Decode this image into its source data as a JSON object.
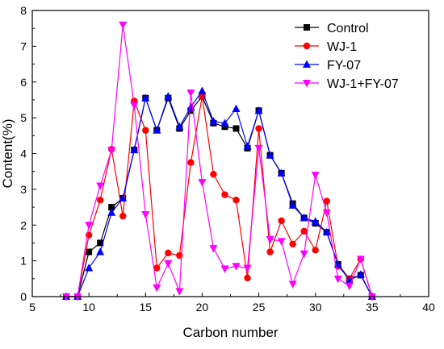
{
  "chart_data": {
    "type": "line",
    "xlabel": "Carbon number",
    "ylabel": "Content(%)",
    "xlim": [
      5,
      40
    ],
    "ylim": [
      0,
      8
    ],
    "xticks": [
      5,
      10,
      15,
      20,
      25,
      30,
      35,
      40
    ],
    "yticks": [
      0,
      1,
      2,
      3,
      4,
      5,
      6,
      7,
      8
    ],
    "grid": false,
    "legend_position": "top-right",
    "series": [
      {
        "name": "Control",
        "color": "#000000",
        "marker": "square",
        "points": [
          [
            8,
            0
          ],
          [
            9,
            0
          ],
          [
            10,
            1.25
          ],
          [
            11,
            1.5
          ],
          [
            12,
            2.5
          ],
          [
            13,
            2.75
          ],
          [
            14,
            4.1
          ],
          [
            15,
            5.55
          ],
          [
            16,
            4.65
          ],
          [
            17,
            5.55
          ],
          [
            18,
            4.7
          ],
          [
            19,
            5.2
          ],
          [
            20,
            5.6
          ],
          [
            21,
            4.85
          ],
          [
            22,
            4.75
          ],
          [
            23,
            4.7
          ],
          [
            24,
            4.15
          ],
          [
            25,
            5.2
          ],
          [
            26,
            3.95
          ],
          [
            27,
            3.45
          ],
          [
            28,
            2.6
          ],
          [
            29,
            2.2
          ],
          [
            30,
            2.05
          ],
          [
            31,
            1.8
          ],
          [
            32,
            0.9
          ],
          [
            33,
            0.5
          ],
          [
            34,
            0.6
          ],
          [
            35,
            0
          ]
        ]
      },
      {
        "name": "WJ-1",
        "color": "#ff0000",
        "marker": "circle",
        "points": [
          [
            8,
            0
          ],
          [
            9,
            0
          ],
          [
            10,
            1.72
          ],
          [
            11,
            2.7
          ],
          [
            12,
            4.12
          ],
          [
            13,
            2.25
          ],
          [
            14,
            5.47
          ],
          [
            15,
            4.65
          ],
          [
            16,
            0.8
          ],
          [
            17,
            1.22
          ],
          [
            18,
            1.15
          ],
          [
            19,
            3.75
          ],
          [
            20,
            5.6
          ],
          [
            21,
            3.42
          ],
          [
            22,
            2.85
          ],
          [
            23,
            2.7
          ],
          [
            24,
            0.52
          ],
          [
            25,
            4.7
          ],
          [
            26,
            1.25
          ],
          [
            27,
            2.12
          ],
          [
            28,
            1.47
          ],
          [
            29,
            1.83
          ],
          [
            30,
            1.3
          ],
          [
            31,
            2.67
          ],
          [
            32,
            0.85
          ],
          [
            33,
            0.5
          ],
          [
            34,
            1.05
          ],
          [
            35,
            0
          ]
        ]
      },
      {
        "name": "FY-07",
        "color": "#0000ff",
        "marker": "triangle-up",
        "points": [
          [
            8,
            0
          ],
          [
            9,
            0
          ],
          [
            10,
            0.8
          ],
          [
            11,
            1.25
          ],
          [
            12,
            2.35
          ],
          [
            13,
            2.75
          ],
          [
            14,
            4.1
          ],
          [
            15,
            5.55
          ],
          [
            16,
            4.65
          ],
          [
            17,
            5.6
          ],
          [
            18,
            4.75
          ],
          [
            19,
            5.3
          ],
          [
            20,
            5.75
          ],
          [
            21,
            4.9
          ],
          [
            22,
            4.85
          ],
          [
            23,
            5.25
          ],
          [
            24,
            4.2
          ],
          [
            25,
            5.2
          ],
          [
            26,
            3.95
          ],
          [
            27,
            3.45
          ],
          [
            28,
            2.55
          ],
          [
            29,
            2.2
          ],
          [
            30,
            2.1
          ],
          [
            31,
            1.8
          ],
          [
            32,
            0.9
          ],
          [
            33,
            0.45
          ],
          [
            34,
            0.62
          ],
          [
            35,
            0
          ]
        ]
      },
      {
        "name": "WJ-1+FY-07",
        "color": "#ff00ff",
        "marker": "triangle-down",
        "points": [
          [
            8,
            0
          ],
          [
            9,
            0
          ],
          [
            10,
            2.0
          ],
          [
            11,
            3.1
          ],
          [
            12,
            4.1
          ],
          [
            13,
            7.6
          ],
          [
            14,
            5.35
          ],
          [
            15,
            2.3
          ],
          [
            16,
            0.25
          ],
          [
            17,
            0.93
          ],
          [
            18,
            0.15
          ],
          [
            19,
            5.7
          ],
          [
            20,
            3.2
          ],
          [
            21,
            1.35
          ],
          [
            22,
            0.78
          ],
          [
            23,
            0.85
          ],
          [
            24,
            0.8
          ],
          [
            25,
            4.15
          ],
          [
            26,
            1.6
          ],
          [
            27,
            1.55
          ],
          [
            28,
            0.35
          ],
          [
            29,
            1.2
          ],
          [
            30,
            3.4
          ],
          [
            31,
            2.35
          ],
          [
            32,
            0.5
          ],
          [
            33,
            0.3
          ],
          [
            34,
            1.05
          ],
          [
            35,
            0
          ]
        ]
      }
    ]
  }
}
